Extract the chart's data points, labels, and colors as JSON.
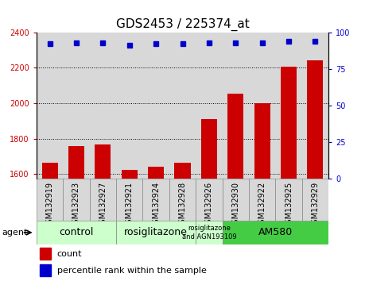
{
  "title": "GDS2453 / 225374_at",
  "samples": [
    "GSM132919",
    "GSM132923",
    "GSM132927",
    "GSM132921",
    "GSM132924",
    "GSM132928",
    "GSM132926",
    "GSM132930",
    "GSM132922",
    "GSM132925",
    "GSM132929"
  ],
  "counts": [
    1665,
    1760,
    1765,
    1625,
    1640,
    1665,
    1910,
    2055,
    2000,
    2205,
    2240
  ],
  "percentiles": [
    92,
    93,
    93,
    91,
    92,
    92,
    93,
    93,
    93,
    94,
    94
  ],
  "ylim_left": [
    1575,
    2400
  ],
  "ylim_right": [
    0,
    100
  ],
  "yticks_left": [
    1600,
    1800,
    2000,
    2200,
    2400
  ],
  "yticks_right": [
    0,
    25,
    50,
    75,
    100
  ],
  "bar_color": "#cc0000",
  "dot_color": "#0000cc",
  "bar_width": 0.6,
  "groups": [
    {
      "label": "control",
      "indices": [
        0,
        1,
        2
      ],
      "color": "#ccffcc",
      "fontsize": 9
    },
    {
      "label": "rosiglitazone",
      "indices": [
        3,
        4,
        5
      ],
      "color": "#ccffcc",
      "fontsize": 9
    },
    {
      "label": "rosiglitazone\nand AGN193109",
      "indices": [
        6
      ],
      "color": "#ccffcc",
      "fontsize": 6
    },
    {
      "label": "AM580",
      "indices": [
        7,
        8,
        9,
        10
      ],
      "color": "#44cc44",
      "fontsize": 9
    }
  ],
  "agent_label": "agent",
  "legend_count_label": "count",
  "legend_percentile_label": "percentile rank within the sample",
  "title_fontsize": 11,
  "tick_fontsize": 7,
  "label_fontsize": 8,
  "background_color": "#ffffff",
  "grid_color": "#000000"
}
